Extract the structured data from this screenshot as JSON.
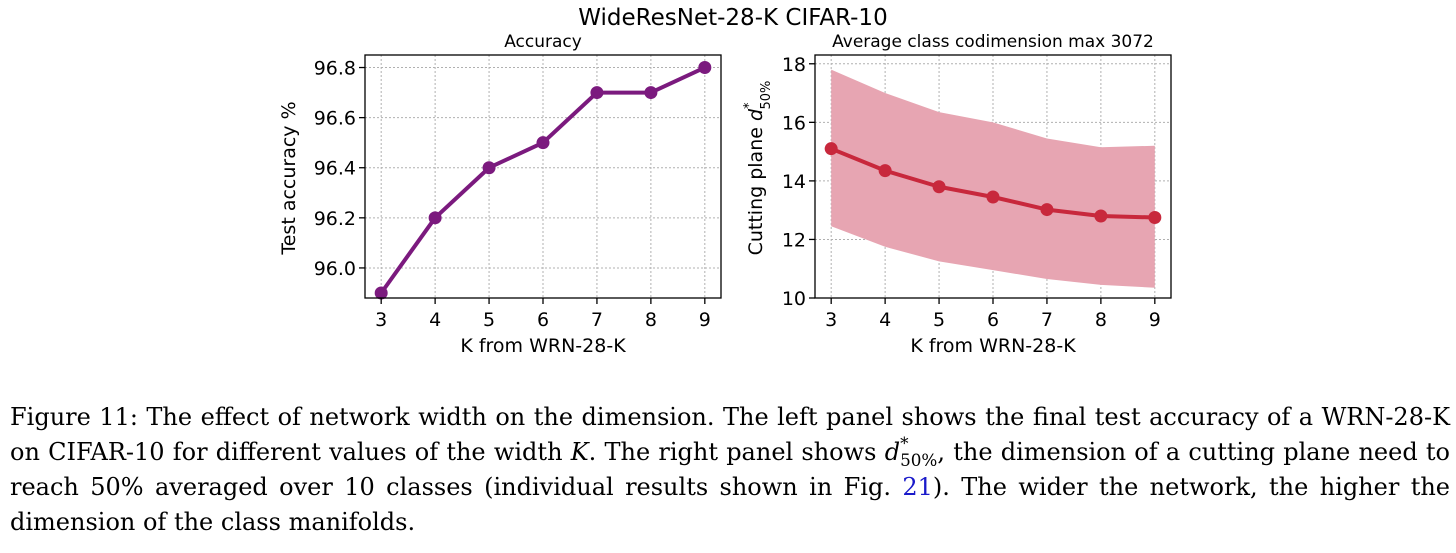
{
  "figure": {
    "suptitle": "WideResNet-28-K CIFAR-10"
  },
  "chart_data": [
    {
      "type": "line",
      "title": "Accuracy",
      "xlabel": "K from WRN-28-K",
      "ylabel": "Test accuracy %",
      "x": [
        3,
        4,
        5,
        6,
        7,
        8,
        9
      ],
      "series": [
        {
          "values": [
            95.9,
            96.2,
            96.4,
            96.5,
            96.7,
            96.7,
            96.8
          ],
          "color": "#7b1a7e"
        }
      ],
      "xlim": [
        2.7,
        9.3
      ],
      "ylim": [
        95.88,
        96.85
      ],
      "xticks": [
        3,
        4,
        5,
        6,
        7,
        8,
        9
      ],
      "yticks": [
        96.0,
        96.2,
        96.4,
        96.6,
        96.8
      ],
      "ytick_labels": [
        "96.0",
        "96.2",
        "96.4",
        "96.6",
        "96.8"
      ],
      "grid": true
    },
    {
      "type": "area",
      "title": "Average class codimension max 3072",
      "xlabel": "K from WRN-28-K",
      "ylabel": "Cutting plane d*50%",
      "x": [
        3,
        4,
        5,
        6,
        7,
        8,
        9
      ],
      "series": [
        {
          "values": [
            15.1,
            14.35,
            13.8,
            13.45,
            13.02,
            12.8,
            12.75
          ],
          "color": "#c8283c"
        }
      ],
      "band_upper": [
        17.8,
        17.0,
        16.35,
        16.0,
        15.45,
        15.15,
        15.2
      ],
      "band_lower": [
        12.45,
        11.75,
        11.25,
        10.95,
        10.65,
        10.45,
        10.35
      ],
      "band_color": "#e7a5b2",
      "xlim": [
        2.7,
        9.3
      ],
      "ylim": [
        10.0,
        18.3
      ],
      "xticks": [
        3,
        4,
        5,
        6,
        7,
        8,
        9
      ],
      "yticks": [
        10,
        12,
        14,
        16,
        18
      ],
      "ytick_labels": [
        "10",
        "12",
        "14",
        "16",
        "18"
      ],
      "grid": true
    }
  ],
  "caption": {
    "label": "Figure 11:",
    "text_1": " The effect of network width on the dimension. The left panel shows the final test accuracy of a WRN-28-K on CIFAR-10 for different values of the width ",
    "k_symbol": "K",
    "text_2": ". The right panel shows ",
    "d_symbol": "d",
    "d_sup": "*",
    "d_sub": "50%",
    "text_3": ", the dimension of a cutting plane need to reach 50% averaged over 10 classes (individual results shown in Fig. ",
    "fig_ref": "21",
    "text_4": "). The wider the network, the higher the dimension of the class manifolds."
  }
}
